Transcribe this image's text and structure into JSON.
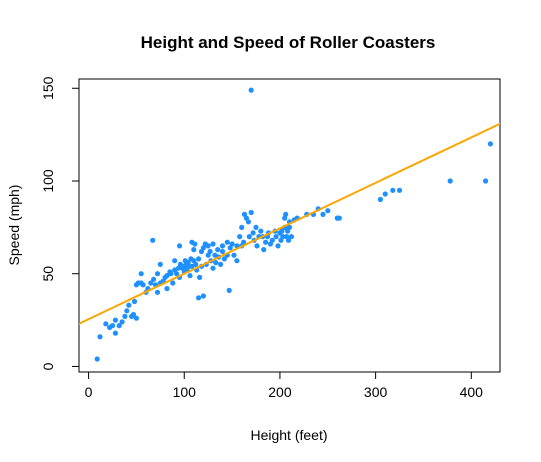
{
  "chart_data": {
    "type": "scatter",
    "title": "Height and Speed of Roller Coasters",
    "xlabel": "Height (feet)",
    "ylabel": "Speed (mph)",
    "xlim": [
      -10,
      430
    ],
    "ylim": [
      -3,
      155
    ],
    "x_ticks": [
      "0",
      "100",
      "200",
      "300",
      "400"
    ],
    "y_ticks": [
      "0",
      "50",
      "100",
      "150"
    ],
    "point_color": "#1E90FF",
    "line_color": "#FFA500",
    "grid": false,
    "regression_line": {
      "intercept": 25.5,
      "slope": 0.245
    },
    "points": [
      [
        9,
        4
      ],
      [
        12,
        16
      ],
      [
        18,
        23
      ],
      [
        22,
        21
      ],
      [
        25,
        22
      ],
      [
        28,
        18
      ],
      [
        28,
        25
      ],
      [
        32,
        22
      ],
      [
        35,
        24
      ],
      [
        38,
        27
      ],
      [
        40,
        30
      ],
      [
        42,
        33
      ],
      [
        45,
        27
      ],
      [
        47,
        28
      ],
      [
        50,
        26
      ],
      [
        48,
        35
      ],
      [
        50,
        44
      ],
      [
        52,
        45
      ],
      [
        55,
        45
      ],
      [
        55,
        50
      ],
      [
        57,
        44
      ],
      [
        60,
        40
      ],
      [
        62,
        42
      ],
      [
        65,
        45
      ],
      [
        67,
        68
      ],
      [
        68,
        47
      ],
      [
        70,
        44
      ],
      [
        72,
        40
      ],
      [
        72,
        50
      ],
      [
        75,
        45
      ],
      [
        75,
        55
      ],
      [
        78,
        46
      ],
      [
        80,
        48
      ],
      [
        82,
        49
      ],
      [
        82,
        42
      ],
      [
        85,
        51
      ],
      [
        86,
        50
      ],
      [
        88,
        45
      ],
      [
        90,
        52
      ],
      [
        90,
        57
      ],
      [
        92,
        50
      ],
      [
        94,
        53
      ],
      [
        95,
        48
      ],
      [
        95,
        65
      ],
      [
        96,
        55
      ],
      [
        98,
        53
      ],
      [
        100,
        54
      ],
      [
        100,
        51
      ],
      [
        101,
        57
      ],
      [
        102,
        55
      ],
      [
        103,
        52
      ],
      [
        104,
        56
      ],
      [
        105,
        54
      ],
      [
        106,
        49
      ],
      [
        107,
        58
      ],
      [
        108,
        54
      ],
      [
        108,
        67
      ],
      [
        110,
        57
      ],
      [
        110,
        63
      ],
      [
        111,
        66
      ],
      [
        112,
        55
      ],
      [
        113,
        52
      ],
      [
        115,
        58
      ],
      [
        115,
        37
      ],
      [
        116,
        48
      ],
      [
        118,
        54
      ],
      [
        118,
        62
      ],
      [
        120,
        64
      ],
      [
        120,
        38
      ],
      [
        122,
        66
      ],
      [
        123,
        55
      ],
      [
        125,
        60
      ],
      [
        125,
        65
      ],
      [
        127,
        62
      ],
      [
        128,
        57
      ],
      [
        130,
        66
      ],
      [
        130,
        53
      ],
      [
        132,
        60
      ],
      [
        133,
        56
      ],
      [
        135,
        63
      ],
      [
        136,
        59
      ],
      [
        138,
        55
      ],
      [
        140,
        62
      ],
      [
        140,
        65
      ],
      [
        142,
        58
      ],
      [
        145,
        60
      ],
      [
        145,
        67
      ],
      [
        147,
        41
      ],
      [
        148,
        64
      ],
      [
        150,
        66
      ],
      [
        152,
        60
      ],
      [
        155,
        57
      ],
      [
        155,
        65
      ],
      [
        158,
        70
      ],
      [
        160,
        75
      ],
      [
        160,
        65
      ],
      [
        162,
        67
      ],
      [
        163,
        82
      ],
      [
        165,
        80
      ],
      [
        167,
        78
      ],
      [
        168,
        70
      ],
      [
        170,
        83
      ],
      [
        170,
        149
      ],
      [
        172,
        72
      ],
      [
        173,
        68
      ],
      [
        175,
        75
      ],
      [
        176,
        65
      ],
      [
        178,
        70
      ],
      [
        180,
        73
      ],
      [
        182,
        70
      ],
      [
        183,
        63
      ],
      [
        185,
        67
      ],
      [
        187,
        70
      ],
      [
        188,
        72
      ],
      [
        190,
        66
      ],
      [
        192,
        68
      ],
      [
        195,
        73
      ],
      [
        196,
        70
      ],
      [
        198,
        65
      ],
      [
        200,
        72
      ],
      [
        201,
        68
      ],
      [
        202,
        73
      ],
      [
        203,
        70
      ],
      [
        205,
        80
      ],
      [
        205,
        75
      ],
      [
        206,
        82
      ],
      [
        207,
        70
      ],
      [
        208,
        73
      ],
      [
        209,
        68
      ],
      [
        210,
        78
      ],
      [
        210,
        75
      ],
      [
        212,
        70
      ],
      [
        215,
        79
      ],
      [
        218,
        80
      ],
      [
        228,
        82
      ],
      [
        235,
        82
      ],
      [
        240,
        85
      ],
      [
        245,
        82
      ],
      [
        250,
        84
      ],
      [
        260,
        80
      ],
      [
        262,
        80
      ],
      [
        305,
        90
      ],
      [
        310,
        93
      ],
      [
        318,
        95
      ],
      [
        325,
        95
      ],
      [
        378,
        100
      ],
      [
        415,
        100
      ],
      [
        420,
        120
      ]
    ]
  }
}
